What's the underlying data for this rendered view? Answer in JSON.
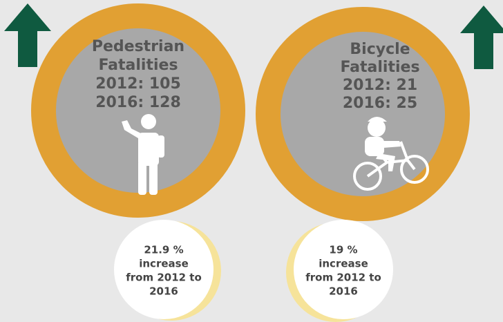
{
  "panels": [
    {
      "title": [
        "Pedestrian",
        "Fatalities"
      ],
      "stats": [
        "2012: 105",
        "2016: 128"
      ],
      "note": [
        "21.9 %",
        "increase",
        "from 2012 to",
        "2016"
      ]
    },
    {
      "title": [
        "Bicycle",
        "Fatalities"
      ],
      "stats": [
        "2012: 21",
        "2016: 25"
      ],
      "note": [
        "19 %",
        "increase",
        "from 2012 to",
        "2016"
      ]
    }
  ]
}
